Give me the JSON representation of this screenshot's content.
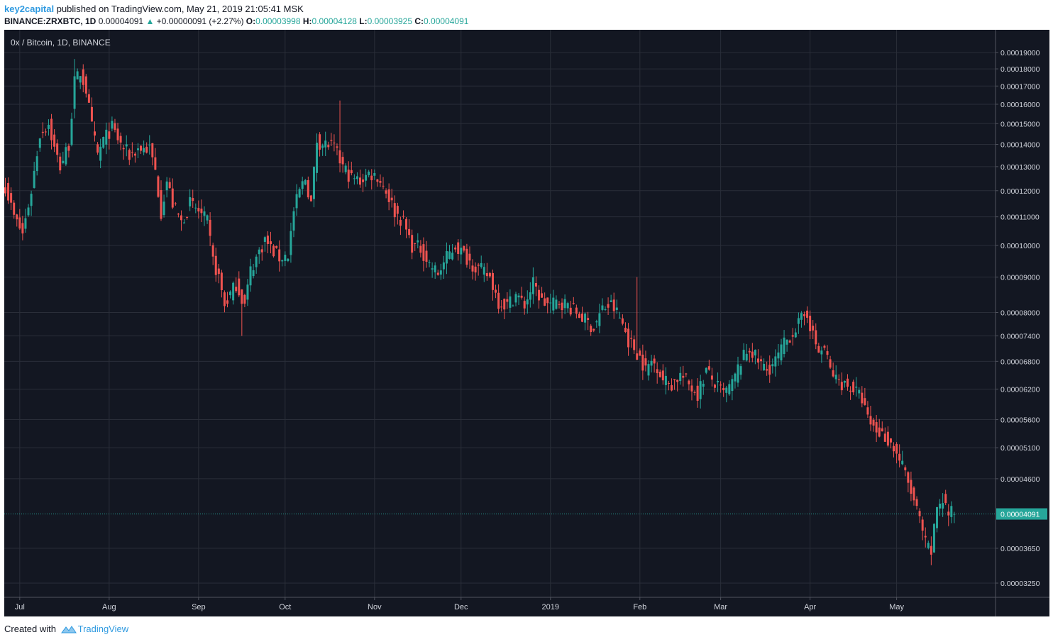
{
  "header": {
    "author": "key2capital",
    "published": " published on TradingView.com, May 21, 2019 21:05:41 MSK",
    "symbol": "BINANCE:ZRXBTC, 1D",
    "last": "0.00004091",
    "change": "+0.00000091 (+2.27%)",
    "o_label": "O:",
    "o": "0.00003998",
    "h_label": "H:",
    "h": "0.00004128",
    "l_label": "L:",
    "l": "0.00003925",
    "c_label": "C:",
    "c": "0.00004091"
  },
  "legend": "0x / Bitcoin, 1D, BINANCE",
  "footer": {
    "created_with": "Created with",
    "brand": "TradingView"
  },
  "colors": {
    "background": "#131722",
    "grid": "#2a2e39",
    "up": "#26a69a",
    "down": "#ef5350",
    "text": "#d1d4dc",
    "last_price": "#26a69a"
  },
  "chart_data": {
    "type": "candlestick",
    "scale": "log",
    "ylim": [
      3.1e-05,
      0.000205
    ],
    "y_ticks": [
      0.00019,
      0.00018,
      0.00017,
      0.00016,
      0.00015,
      0.00014,
      0.00013,
      0.00012,
      0.00011,
      0.0001,
      9e-05,
      8e-05,
      7.4e-05,
      6.8e-05,
      6.2e-05,
      5.6e-05,
      5.1e-05,
      4.6e-05,
      3.65e-05,
      3.25e-05
    ],
    "y_tick_labels": [
      "0.00019000",
      "0.00018000",
      "0.00017000",
      "0.00016000",
      "0.00015000",
      "0.00014000",
      "0.00013000",
      "0.00012000",
      "0.00011000",
      "0.00010000",
      "0.00009000",
      "0.00008000",
      "0.00007400",
      "0.00006800",
      "0.00006200",
      "0.00005600",
      "0.00005100",
      "0.00004600",
      "0.00003650",
      "0.00003250"
    ],
    "x_labels": [
      "Jul",
      "Aug",
      "Sep",
      "Oct",
      "Nov",
      "Dec",
      "2019",
      "Feb",
      "Mar",
      "Apr",
      "May"
    ],
    "x_label_days": [
      5,
      36,
      67,
      97,
      128,
      158,
      189,
      220,
      248,
      279,
      309
    ],
    "last_price": 4.091e-05,
    "last_price_label": "0.00004091",
    "close_path": [
      [
        0,
        0.000122
      ],
      [
        3,
        0.00011
      ],
      [
        6,
        0.000104
      ],
      [
        9,
        0.00012
      ],
      [
        12,
        0.000145
      ],
      [
        15,
        0.00015
      ],
      [
        17,
        0.000138
      ],
      [
        19,
        0.00013
      ],
      [
        22,
        0.00014
      ],
      [
        24,
        0.000172
      ],
      [
        26,
        0.000178
      ],
      [
        28,
        0.000168
      ],
      [
        30,
        0.000148
      ],
      [
        32,
        0.000135
      ],
      [
        34,
        0.000142
      ],
      [
        37,
        0.000148
      ],
      [
        40,
        0.00014
      ],
      [
        43,
        0.000135
      ],
      [
        46,
        0.000138
      ],
      [
        50,
        0.000138
      ],
      [
        52,
        0.000128
      ],
      [
        54,
        0.000112
      ],
      [
        56,
        0.000124
      ],
      [
        58,
        0.000115
      ],
      [
        61,
        0.000108
      ],
      [
        64,
        0.000115
      ],
      [
        67,
        0.000112
      ],
      [
        70,
        0.000108
      ],
      [
        72,
        9.5e-05
      ],
      [
        74,
        9e-05
      ],
      [
        76,
        8.2e-05
      ],
      [
        78,
        8.5e-05
      ],
      [
        80,
        8.8e-05
      ],
      [
        83,
        8.2e-05
      ],
      [
        85,
        9.2e-05
      ],
      [
        88,
        9.8e-05
      ],
      [
        90,
        0.000102
      ],
      [
        92,
        9.9e-05
      ],
      [
        95,
        9.6e-05
      ],
      [
        98,
        9.7e-05
      ],
      [
        100,
        0.000112
      ],
      [
        102,
        0.00012
      ],
      [
        104,
        0.000125
      ],
      [
        106,
        0.000115
      ],
      [
        108,
        0.000142
      ],
      [
        110,
        0.00014
      ],
      [
        112,
        0.00014
      ],
      [
        114,
        0.000138
      ],
      [
        117,
        0.00013
      ],
      [
        120,
        0.000125
      ],
      [
        123,
        0.000124
      ],
      [
        126,
        0.000127
      ],
      [
        129,
        0.000126
      ],
      [
        132,
        0.00012
      ],
      [
        135,
        0.000112
      ],
      [
        138,
        0.000108
      ],
      [
        141,
        0.0001
      ],
      [
        144,
        9.9e-05
      ],
      [
        147,
        9.4e-05
      ],
      [
        150,
        9.1e-05
      ],
      [
        153,
        9.6e-05
      ],
      [
        156,
        0.0001
      ],
      [
        159,
        9.7e-05
      ],
      [
        162,
        9.4e-05
      ],
      [
        165,
        9.2e-05
      ],
      [
        168,
        9e-05
      ],
      [
        171,
        8.3e-05
      ],
      [
        174,
        8.2e-05
      ],
      [
        177,
        8.5e-05
      ],
      [
        180,
        8.2e-05
      ],
      [
        183,
        8.8e-05
      ],
      [
        186,
        8.3e-05
      ],
      [
        189,
        8.2e-05
      ],
      [
        192,
        8.3e-05
      ],
      [
        195,
        8.2e-05
      ],
      [
        198,
        8e-05
      ],
      [
        201,
        7.8e-05
      ],
      [
        204,
        7.6e-05
      ],
      [
        207,
        8.1e-05
      ],
      [
        210,
        8.2e-05
      ],
      [
        212,
        8e-05
      ],
      [
        214,
        7.7e-05
      ],
      [
        216,
        7.3e-05
      ],
      [
        218,
        7.1e-05
      ],
      [
        220,
        6.9e-05
      ],
      [
        222,
        6.6e-05
      ],
      [
        224,
        6.8e-05
      ],
      [
        226,
        6.7e-05
      ],
      [
        228,
        6.4e-05
      ],
      [
        231,
        6.3e-05
      ],
      [
        234,
        6.5e-05
      ],
      [
        237,
        6.3e-05
      ],
      [
        240,
        6.1e-05
      ],
      [
        243,
        6.6e-05
      ],
      [
        246,
        6.3e-05
      ],
      [
        249,
        6.1e-05
      ],
      [
        252,
        6.3e-05
      ],
      [
        255,
        6.8e-05
      ],
      [
        258,
        7.1e-05
      ],
      [
        261,
        6.8e-05
      ],
      [
        264,
        6.6e-05
      ],
      [
        267,
        6.8e-05
      ],
      [
        270,
        7.2e-05
      ],
      [
        273,
        7.5e-05
      ],
      [
        276,
        7.8e-05
      ],
      [
        278,
        8e-05
      ],
      [
        280,
        7.4e-05
      ],
      [
        282,
        7e-05
      ],
      [
        284,
        7.1e-05
      ],
      [
        286,
        6.6e-05
      ],
      [
        288,
        6.4e-05
      ],
      [
        291,
        6.3e-05
      ],
      [
        294,
        6.2e-05
      ],
      [
        297,
        6e-05
      ],
      [
        299,
        5.6e-05
      ],
      [
        302,
        5.4e-05
      ],
      [
        305,
        5.3e-05
      ],
      [
        308,
        5.1e-05
      ],
      [
        311,
        4.8e-05
      ],
      [
        314,
        4.4e-05
      ],
      [
        317,
        4e-05
      ],
      [
        319,
        3.7e-05
      ],
      [
        321,
        3.6e-05
      ],
      [
        323,
        4.2e-05
      ],
      [
        325,
        4.3e-05
      ],
      [
        327,
        4.1e-05
      ],
      [
        329,
        4.1e-05
      ]
    ],
    "wick_extremes": [
      {
        "day": 24,
        "high": 0.000186
      },
      {
        "day": 82,
        "low": 7.4e-05
      },
      {
        "day": 116,
        "high": 0.000162
      },
      {
        "day": 219,
        "high": 9e-05
      },
      {
        "day": 321,
        "low": 3.45e-05
      }
    ]
  }
}
